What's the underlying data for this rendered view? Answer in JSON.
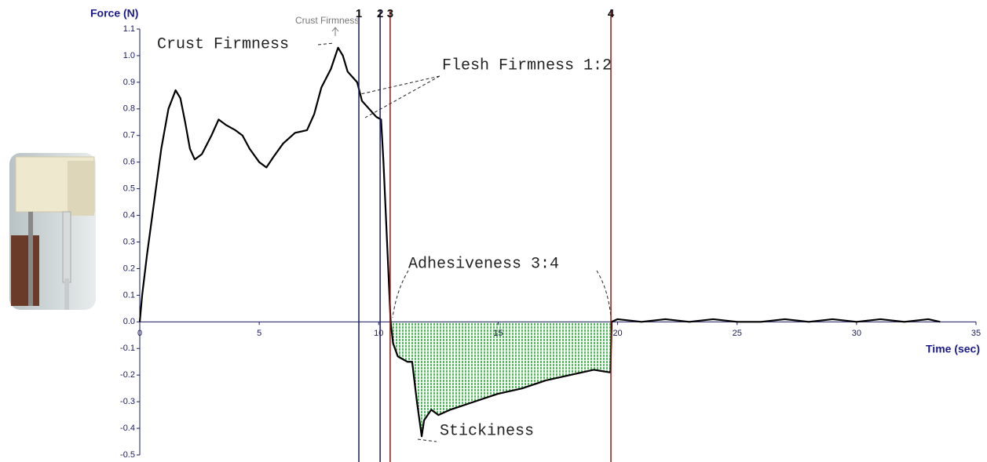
{
  "chart_data": {
    "type": "line",
    "y_label": "Force (N)",
    "x_label": "Time (sec)",
    "color": "#000000",
    "area_color": "#3cb44b",
    "xlim": [
      0,
      35
    ],
    "ylim": [
      -0.5,
      1.1
    ],
    "xticks": [
      0,
      5,
      10,
      15,
      20,
      25,
      30,
      35
    ],
    "yticks": [
      -0.5,
      -0.4,
      -0.3,
      -0.2,
      -0.1,
      {
        "value": 0,
        "label": "0.0"
      },
      0.1,
      0.2,
      0.3,
      0.4,
      0.5,
      0.6,
      0.7,
      0.8,
      0.9,
      {
        "value": 1,
        "label": "1.0"
      },
      1.1
    ],
    "x": [
      0,
      0.1,
      0.3,
      0.6,
      0.9,
      1.2,
      1.5,
      1.7,
      1.9,
      2.1,
      2.3,
      2.6,
      3.0,
      3.3,
      3.6,
      4.0,
      4.3,
      4.6,
      5.0,
      5.3,
      5.6,
      6.0,
      6.5,
      7.0,
      7.3,
      7.6,
      8.0,
      8.3,
      8.5,
      8.7,
      8.9,
      9.1,
      9.3,
      9.6,
      9.9,
      10.1,
      10.2,
      10.3,
      10.4,
      10.5,
      10.6,
      10.8,
      11.2,
      11.4,
      11.6,
      11.8,
      11.9,
      12.2,
      12.5,
      13.0,
      14.0,
      15.0,
      16.0,
      17.0,
      18.0,
      19.0,
      19.7,
      19.75,
      20,
      21,
      22,
      23,
      24,
      25,
      26,
      27,
      28,
      29,
      30,
      31,
      32,
      33,
      33.5
    ],
    "values": [
      0.0,
      0.1,
      0.25,
      0.45,
      0.65,
      0.8,
      0.87,
      0.84,
      0.75,
      0.65,
      0.61,
      0.63,
      0.7,
      0.76,
      0.74,
      0.72,
      0.7,
      0.65,
      0.6,
      0.58,
      0.62,
      0.67,
      0.71,
      0.72,
      0.78,
      0.88,
      0.95,
      1.03,
      1.0,
      0.94,
      0.92,
      0.9,
      0.83,
      0.8,
      0.77,
      0.76,
      0.6,
      0.4,
      0.2,
      0.0,
      -0.08,
      -0.13,
      -0.15,
      -0.15,
      -0.3,
      -0.43,
      -0.37,
      -0.33,
      -0.35,
      -0.33,
      -0.3,
      -0.27,
      -0.25,
      -0.22,
      -0.2,
      -0.18,
      -0.19,
      0.0,
      0.01,
      0.0,
      0.01,
      0.0,
      0.01,
      0.0,
      0.0,
      0.01,
      0.0,
      0.01,
      0.0,
      0.01,
      0.0,
      0.01,
      0.0
    ],
    "markers": [
      {
        "label": "1",
        "x": 9.17,
        "color": "#1a1a5e"
      },
      {
        "label": "2",
        "x": 10.06,
        "color": "#1a1a5e"
      },
      {
        "label": "3",
        "x": 10.48,
        "color": "#8b1a1a"
      },
      {
        "label": "4",
        "x": 19.72,
        "color": "#8b1a1a"
      }
    ],
    "annotations": [
      "Crust Firmness",
      "Flesh Firmness 1:2",
      "Adhesiveness 3:4",
      "Stickiness",
      "Crust Firmness"
    ]
  }
}
